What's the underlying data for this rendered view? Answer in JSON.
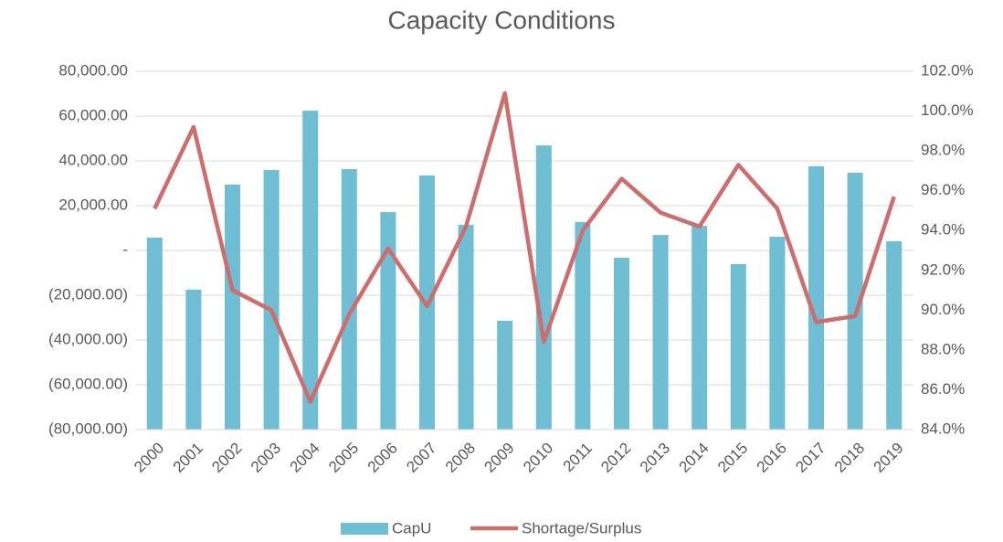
{
  "chart_data": {
    "type": "bar",
    "title": "Capacity Conditions",
    "categories": [
      "2000",
      "2001",
      "2002",
      "2003",
      "2004",
      "2005",
      "2006",
      "2007",
      "2008",
      "2009",
      "2010",
      "2011",
      "2012",
      "2013",
      "2014",
      "2015",
      "2016",
      "2017",
      "2018",
      "2019"
    ],
    "series": [
      {
        "name": "CapU",
        "type": "bar",
        "color": "#6fbed3",
        "values": [
          5700,
          -17500,
          29400,
          35900,
          62400,
          36300,
          17100,
          33500,
          11400,
          -31400,
          46900,
          12700,
          -3300,
          6900,
          11000,
          -6100,
          6100,
          37600,
          34700,
          4100
        ]
      },
      {
        "name": "Shortage/Surplus",
        "type": "line",
        "axis": "y2",
        "color": "#cd6e6e",
        "values": [
          95.1,
          99.2,
          91.0,
          90.0,
          85.4,
          89.8,
          93.1,
          90.2,
          94.2,
          100.9,
          88.4,
          94.0,
          96.6,
          94.9,
          94.2,
          97.3,
          95.1,
          89.4,
          89.7,
          95.7
        ]
      }
    ],
    "ylim": [
      -80000,
      80000
    ],
    "yticks": [
      {
        "value": -80000,
        "label": "(80,000.00)"
      },
      {
        "value": -60000,
        "label": "(60,000.00)"
      },
      {
        "value": -40000,
        "label": "(40,000.00)"
      },
      {
        "value": -20000,
        "label": "(20,000.00)"
      },
      {
        "value": 0,
        "label": "-"
      },
      {
        "value": 20000,
        "label": "20,000.00"
      },
      {
        "value": 40000,
        "label": "40,000.00"
      },
      {
        "value": 60000,
        "label": "60,000.00"
      },
      {
        "value": 80000,
        "label": "80,000.00"
      }
    ],
    "y2lim": [
      84,
      102
    ],
    "y2ticks": [
      {
        "value": 84,
        "label": "84.0%"
      },
      {
        "value": 86,
        "label": "86.0%"
      },
      {
        "value": 88,
        "label": "88.0%"
      },
      {
        "value": 90,
        "label": "90.0%"
      },
      {
        "value": 92,
        "label": "92.0%"
      },
      {
        "value": 94,
        "label": "94.0%"
      },
      {
        "value": 96,
        "label": "96.0%"
      },
      {
        "value": 98,
        "label": "98.0%"
      },
      {
        "value": 100,
        "label": "100.0%"
      },
      {
        "value": 102,
        "label": "102.0%"
      }
    ],
    "grid": true,
    "legend": "bottom"
  }
}
